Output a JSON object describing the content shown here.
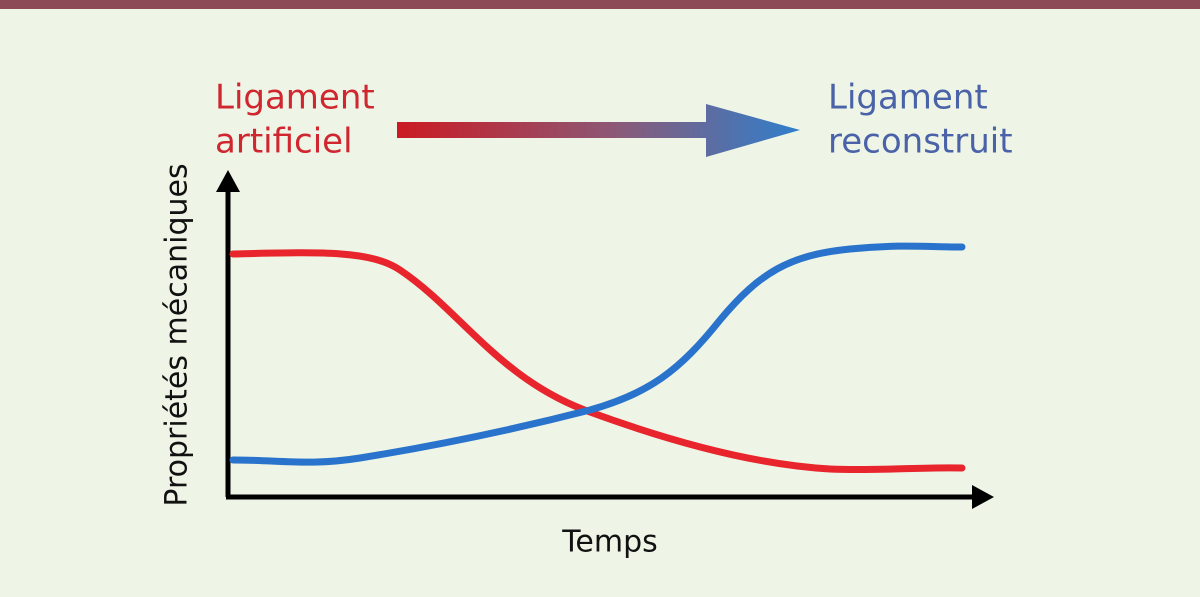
{
  "start_label": [
    "Ligament",
    "artificiel"
  ],
  "end_label": [
    "Ligament",
    "reconstruit"
  ],
  "y_axis_label": "Propriétés mécaniques",
  "x_axis_label": "Temps"
}
